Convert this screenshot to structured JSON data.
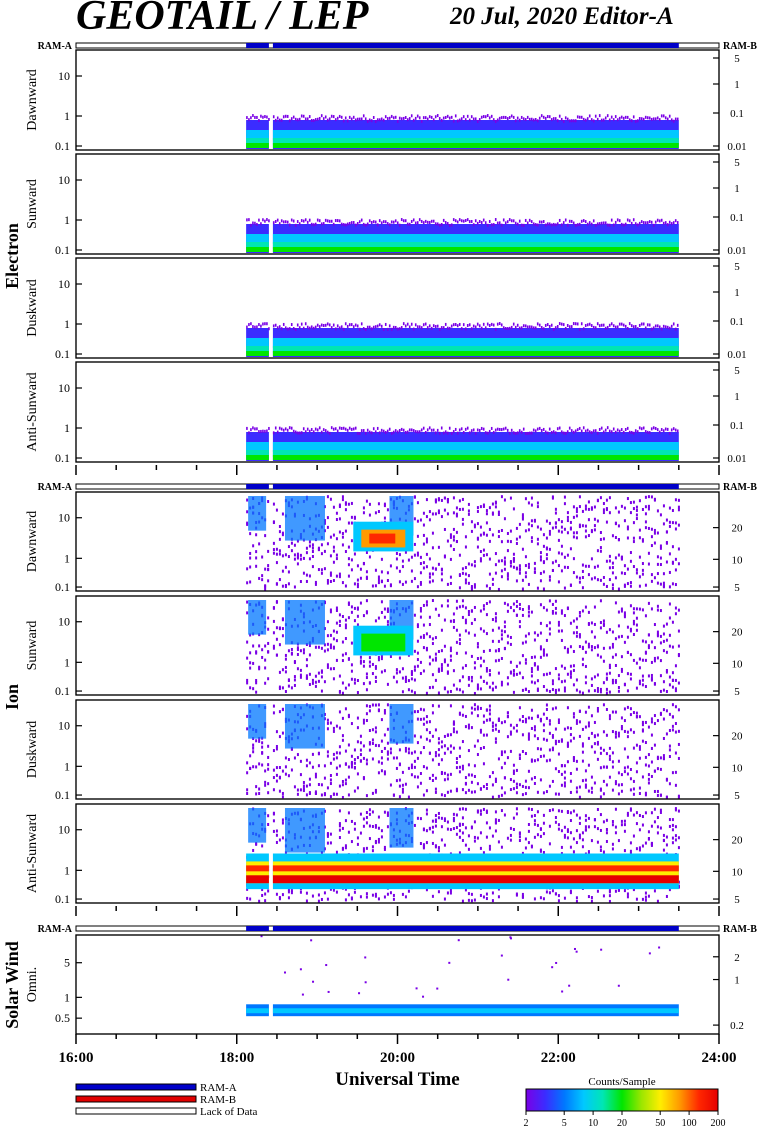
{
  "header": {
    "title": "GEOTAIL / LEP",
    "subtitle": "20 Jul, 2020   Editor-A"
  },
  "colors": {
    "ram_a": "#0000c8",
    "ram_b": "#e00000",
    "plot_frame": "#000000",
    "colorbar_stops": [
      "#7a00e6",
      "#3b2cff",
      "#0077ff",
      "#00c8ff",
      "#00e6b4",
      "#00e600",
      "#9ae600",
      "#ffee00",
      "#ff9a00",
      "#ff2800",
      "#e60000"
    ]
  },
  "chart_data": {
    "type": "heatmap",
    "xlabel": "Universal Time",
    "x_range": [
      "16:00",
      "24:00"
    ],
    "x_ticks": [
      "16:00",
      "18:00",
      "20:00",
      "22:00",
      "24:00"
    ],
    "data_start": "18:07",
    "data_end": "23:30",
    "data_gaps": [
      "18:24",
      "18:27"
    ],
    "groups": [
      {
        "name": "Electron",
        "ram_left": "RAM-A",
        "ram_right": "RAM-B",
        "panels": [
          {
            "label": "Dawnward",
            "left_ticks": [
              "10",
              "1",
              "0.1"
            ],
            "right_ticks": [
              "5",
              "1",
              "0.1",
              "0.01"
            ]
          },
          {
            "label": "Sunward",
            "left_ticks": [
              "10",
              "1",
              "0.1"
            ],
            "right_ticks": [
              "5",
              "1",
              "0.1",
              "0.01"
            ]
          },
          {
            "label": "Duskward",
            "left_ticks": [
              "10",
              "1",
              "0.1"
            ],
            "right_ticks": [
              "5",
              "1",
              "0.1",
              "0.01"
            ]
          },
          {
            "label": "Anti-Sunward",
            "left_ticks": [
              "10",
              "1",
              "0.1"
            ],
            "right_ticks": [
              "5",
              "1",
              "0.1",
              "0.01"
            ]
          }
        ]
      },
      {
        "name": "Ion",
        "ram_left": "RAM-A",
        "ram_right": "RAM-B",
        "panels": [
          {
            "label": "Dawnward",
            "left_ticks": [
              "10",
              "1",
              "0.1"
            ],
            "right_ticks": [
              "20",
              "10",
              "5"
            ]
          },
          {
            "label": "Sunward",
            "left_ticks": [
              "10",
              "1",
              "0.1"
            ],
            "right_ticks": [
              "20",
              "10",
              "5"
            ]
          },
          {
            "label": "Duskward",
            "left_ticks": [
              "10",
              "1",
              "0.1"
            ],
            "right_ticks": [
              "20",
              "10",
              "5"
            ]
          },
          {
            "label": "Anti-Sunward",
            "left_ticks": [
              "10",
              "1",
              "0.1"
            ],
            "right_ticks": [
              "20",
              "10",
              "5"
            ]
          }
        ]
      },
      {
        "name": "Solar Wind",
        "ram_left": "RAM-A",
        "ram_right": "RAM-B",
        "panels": [
          {
            "label": "Omni.",
            "left_ticks": [
              "5",
              "1",
              "0.5"
            ],
            "right_ticks": [
              "2",
              "1",
              "0.2"
            ]
          }
        ]
      }
    ],
    "legend": {
      "items": [
        "RAM-A",
        "RAM-B",
        "Lack of Data"
      ],
      "colorbar_title": "Counts/Sample",
      "colorbar_ticks": [
        "2",
        "5",
        "10",
        "20",
        "50",
        "100",
        "200"
      ]
    }
  }
}
